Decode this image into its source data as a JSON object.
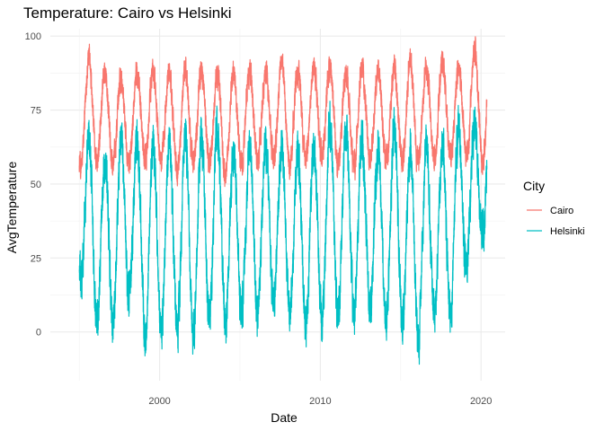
{
  "chart_data": {
    "type": "line",
    "title": "Temperature: Cairo vs Helsinki",
    "xlabel": "Date",
    "ylabel": "AvgTemperature",
    "x_range": [
      "1995-01-01",
      "2020-05-13"
    ],
    "xlim": [
      1993.2,
      2021.5
    ],
    "ylim": [
      -16.5,
      102.5
    ],
    "x_ticks": [
      {
        "value": 2000,
        "label": "2000"
      },
      {
        "value": 2010,
        "label": "2010"
      },
      {
        "value": 2020,
        "label": "2020"
      }
    ],
    "y_ticks": [
      {
        "value": 0,
        "label": "0"
      },
      {
        "value": 25,
        "label": "25"
      },
      {
        "value": 50,
        "label": "50"
      },
      {
        "value": 75,
        "label": "75"
      },
      {
        "value": 100,
        "label": "100"
      }
    ],
    "grid": true,
    "legend": {
      "title": "City",
      "position": "right"
    },
    "series": [
      {
        "name": "Cairo",
        "color": "#F8766D",
        "seasonal_peak_x": [
          1995.6,
          1996.6,
          1997.6,
          1998.6,
          1999.6,
          2000.6,
          2001.6,
          2002.6,
          2003.6,
          2004.6,
          2005.6,
          2006.6,
          2007.6,
          2008.6,
          2009.6,
          2010.6,
          2011.6,
          2012.6,
          2013.6,
          2014.6,
          2015.6,
          2016.6,
          2017.6,
          2018.6,
          2019.6
        ],
        "seasonal_peak_y": [
          98,
          91,
          90,
          92,
          93,
          92,
          93,
          93,
          92,
          92,
          93,
          92,
          96,
          93,
          93,
          94,
          92,
          94,
          92,
          94,
          96,
          93,
          95,
          94,
          100
        ],
        "seasonal_trough_x": [
          1995.1,
          1996.1,
          1997.1,
          1998.1,
          1999.1,
          2000.1,
          2001.1,
          2002.1,
          2003.1,
          2004.1,
          2005.1,
          2006.1,
          2007.1,
          2008.1,
          2009.1,
          2010.1,
          2011.1,
          2012.1,
          2013.1,
          2014.1,
          2015.1,
          2016.1,
          2017.1,
          2018.1,
          2019.1,
          2020.1
        ],
        "seasonal_trough_y": [
          50,
          53,
          52,
          53,
          54,
          54,
          49,
          54,
          53,
          48,
          52,
          53,
          54,
          51,
          55,
          56,
          52,
          51,
          55,
          54,
          52,
          53,
          54,
          55,
          54,
          53
        ]
      },
      {
        "name": "Helsinki",
        "color": "#00BFC4",
        "seasonal_peak_x": [
          1995.6,
          1996.6,
          1997.6,
          1998.6,
          1999.6,
          2000.6,
          2001.6,
          2002.6,
          2003.6,
          2004.6,
          2005.6,
          2006.6,
          2007.6,
          2008.6,
          2009.6,
          2010.6,
          2011.6,
          2012.6,
          2013.6,
          2014.6,
          2015.6,
          2016.6,
          2017.6,
          2018.6,
          2019.6
        ],
        "seasonal_peak_y": [
          74,
          66,
          74,
          72,
          73,
          72,
          76,
          75,
          78,
          68,
          70,
          71,
          70,
          69,
          70,
          79,
          78,
          72,
          70,
          78,
          69,
          72,
          70,
          77,
          76
        ],
        "seasonal_trough_x": [
          1995.1,
          1996.1,
          1997.1,
          1998.1,
          1999.1,
          2000.1,
          2001.1,
          2002.1,
          2003.1,
          2004.1,
          2005.1,
          2006.1,
          2007.1,
          2008.1,
          2009.1,
          2010.1,
          2011.1,
          2012.1,
          2013.1,
          2014.1,
          2015.1,
          2016.1,
          2017.1,
          2018.1,
          2019.1,
          2020.1
        ],
        "seasonal_trough_y": [
          10,
          -5,
          -7,
          5,
          -12,
          -10,
          -8,
          -14,
          -2,
          -6,
          0,
          -2,
          3,
          -1,
          -7,
          -4,
          -5,
          -2,
          1,
          -5,
          -4,
          -13,
          -3,
          -3,
          15,
          27
        ]
      }
    ]
  }
}
